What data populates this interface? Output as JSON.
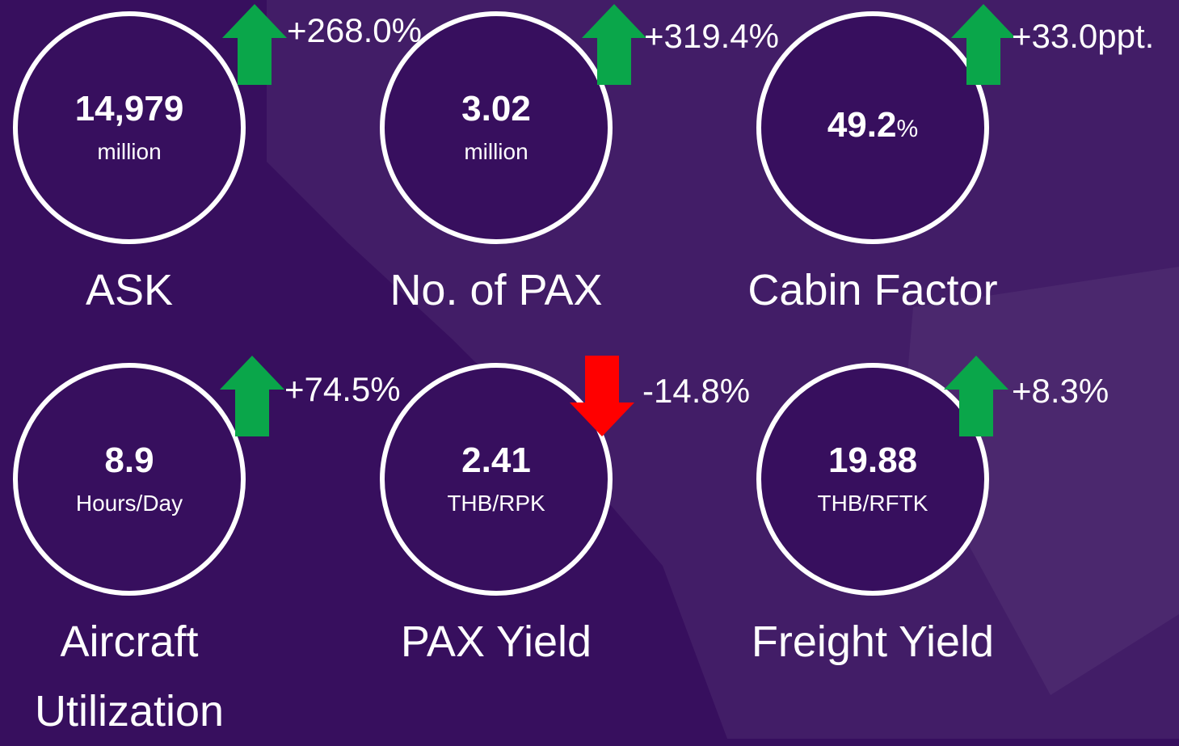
{
  "kpis": [
    {
      "value": "14,979",
      "unit": "million",
      "label": "ASK",
      "change": "+268.0%",
      "direction": "up",
      "arrow_color": "#0aa64a"
    },
    {
      "value": "3.02",
      "unit": "million",
      "label": "No. of PAX",
      "change": "+319.4%",
      "direction": "up",
      "arrow_color": "#0aa64a"
    },
    {
      "value": "49.2",
      "unit": "%",
      "label": "Cabin Factor",
      "change": "+33.0ppt.",
      "direction": "up",
      "arrow_color": "#0aa64a"
    },
    {
      "value": "8.9",
      "unit": "Hours/Day",
      "label": "Aircraft Utilization",
      "change": "+74.5%",
      "direction": "up",
      "arrow_color": "#0aa64a"
    },
    {
      "value": "2.41",
      "unit": "THB/RPK",
      "label": "PAX Yield",
      "change": "-14.8%",
      "direction": "down",
      "arrow_color": "#ff0000"
    },
    {
      "value": "19.88",
      "unit": "THB/RFTK",
      "label": "Freight Yield",
      "change": "+8.3%",
      "direction": "up",
      "arrow_color": "#0aa64a"
    }
  ]
}
